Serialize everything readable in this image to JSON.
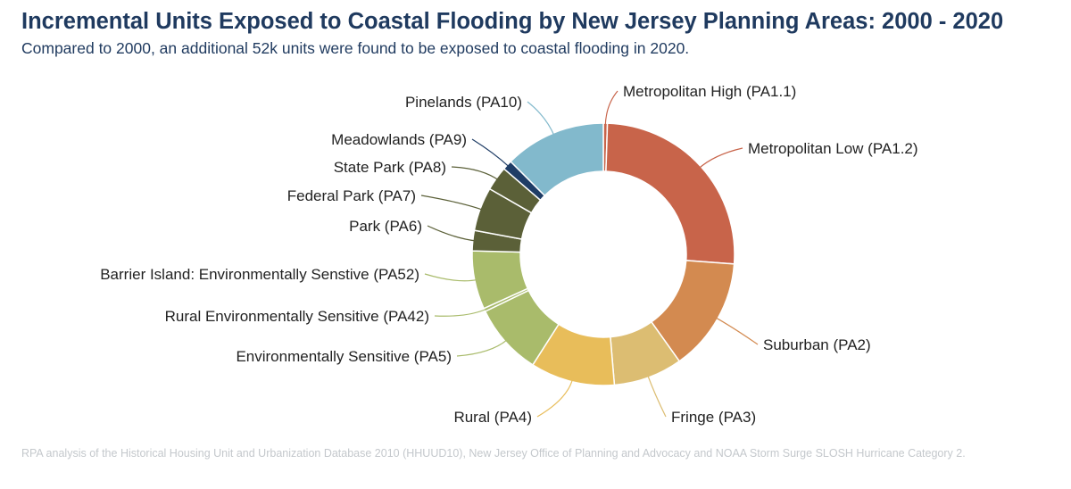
{
  "title": "Incremental Units Exposed to Coastal Flooding by New Jersey Planning Areas: 2000 - 2020",
  "subtitle": "Compared to 2000, an additional 52k units were found to be exposed to coastal flooding in 2020.",
  "source": "RPA analysis of the Historical Housing Unit and Urbanization Database 2010 (HHUUD10), New Jersey Office of Planning and Advocacy and NOAA Storm Surge SLOSH Hurricane Category 2.",
  "chart_data": {
    "type": "pie",
    "donut": true,
    "unit": "share of units",
    "legend": "none",
    "slices": [
      {
        "label": "Metropolitan High (PA1.1)",
        "value": 0.5,
        "color": "#c8644a"
      },
      {
        "label": "Metropolitan Low (PA1.2)",
        "value": 25.7,
        "color": "#c8644a"
      },
      {
        "label": "Suburban (PA2)",
        "value": 14.0,
        "color": "#d38a50"
      },
      {
        "label": "Fringe (PA3)",
        "value": 8.5,
        "color": "#dcbd72"
      },
      {
        "label": "Rural (PA4)",
        "value": 10.4,
        "color": "#e8bd5a"
      },
      {
        "label": "Environmentally Sensitive (PA5)",
        "value": 8.8,
        "color": "#a9bb6b"
      },
      {
        "label": "Rural Environmentally Sensitive (PA42)",
        "value": 0.4,
        "color": "#a9bb6b"
      },
      {
        "label": "Barrier Island: Environmentally Senstive (PA52)",
        "value": 7.2,
        "color": "#a9bb6b"
      },
      {
        "label": "Park (PA6)",
        "value": 2.5,
        "color": "#5b6038"
      },
      {
        "label": "Federal Park (PA7)",
        "value": 5.4,
        "color": "#5b6038"
      },
      {
        "label": "State Park (PA8)",
        "value": 3.0,
        "color": "#5b6038"
      },
      {
        "label": "Meadowlands (PA9)",
        "value": 1.2,
        "color": "#1f3d66"
      },
      {
        "label": "Pinelands (PA10)",
        "value": 12.5,
        "color": "#82b9cc"
      }
    ]
  }
}
